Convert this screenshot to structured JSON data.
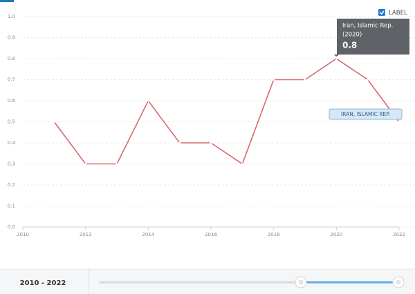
{
  "chart_data": {
    "type": "line",
    "x": [
      2011,
      2012,
      2013,
      2014,
      2015,
      2016,
      2017,
      2018,
      2019,
      2020,
      2021,
      2022
    ],
    "series": [
      {
        "name": "Iran, Islamic Rep.",
        "color": "#d9666e",
        "values": [
          0.5,
          0.3,
          0.3,
          0.6,
          0.4,
          0.4,
          0.3,
          0.7,
          0.7,
          0.8,
          0.7,
          0.5
        ]
      }
    ],
    "xlim": [
      2010,
      2022
    ],
    "xticks": [
      2010,
      2012,
      2014,
      2016,
      2018,
      2020,
      2022
    ],
    "ylim": [
      0,
      1
    ],
    "yticks": [
      {
        "value": 0,
        "label": "0.0"
      },
      0.1,
      0.2,
      0.3,
      0.4,
      0.5,
      0.6,
      0.7,
      0.8,
      0.9,
      {
        "value": 1,
        "label": "1.0"
      }
    ],
    "grid": true,
    "line_label": "IRAN, ISLAMIC REP.",
    "label_toggle": "LABEL",
    "tooltip": {
      "title": "Iran, Islamic Rep.",
      "period": "(2020)",
      "index": 9
    },
    "range_label": "2010 - 2022"
  }
}
